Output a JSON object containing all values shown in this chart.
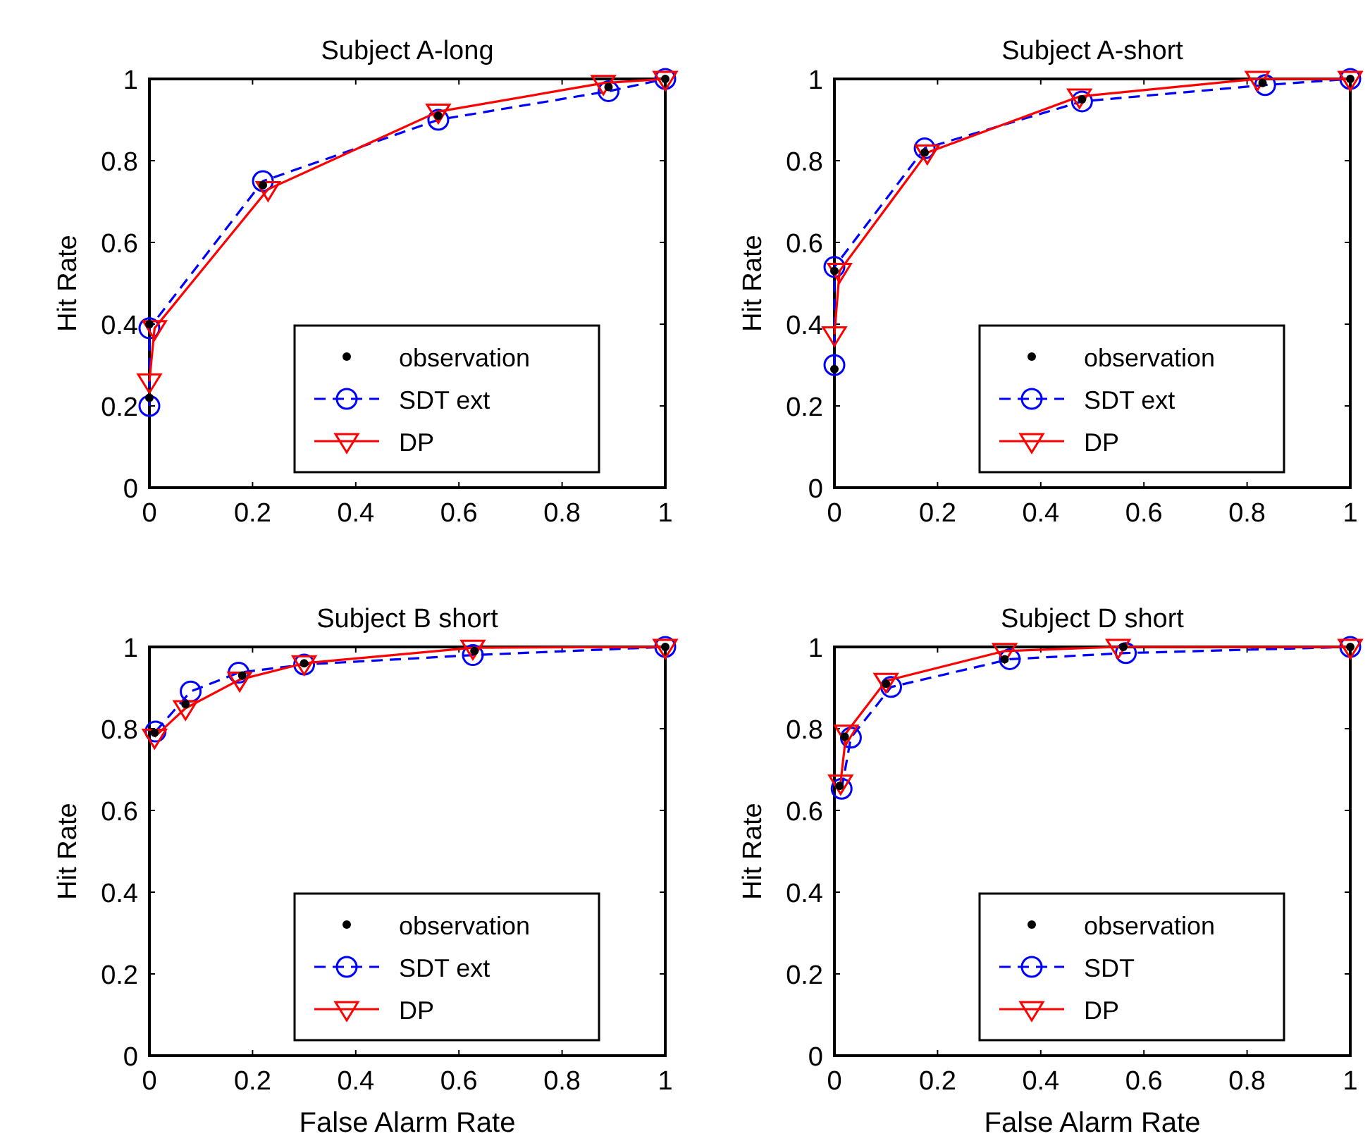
{
  "chart_data": [
    {
      "type": "line",
      "title": "Subject A-long",
      "ylabel": "Hit Rate",
      "xlim": [
        0,
        1
      ],
      "ylim": [
        0,
        1
      ],
      "xticks": [
        0,
        0.2,
        0.4,
        0.6,
        0.8,
        1
      ],
      "yticks": [
        0,
        0.2,
        0.4,
        0.6,
        0.8,
        1
      ],
      "legend": "bottom",
      "grid": false,
      "series": [
        {
          "name": "observation",
          "type": "scatter",
          "color": "#000000",
          "marker": "circle",
          "x": [
            0,
            0,
            0.22,
            0.56,
            0.89,
            1
          ],
          "values": [
            0.22,
            0.4,
            0.74,
            0.91,
            0.98,
            1
          ]
        },
        {
          "name": "SDT ext",
          "type": "line",
          "color": "#0000ff",
          "marker": "circle",
          "line_style": "dashed",
          "x": [
            0,
            0,
            0.22,
            0.56,
            0.89,
            1
          ],
          "values": [
            0.2,
            0.39,
            0.75,
            0.9,
            0.97,
            1
          ]
        },
        {
          "name": "DP",
          "type": "line",
          "color": "#ff0000",
          "marker": "triangle",
          "line_style": "solid",
          "x": [
            0,
            0.01,
            0.23,
            0.56,
            0.88,
            1
          ],
          "values": [
            0.26,
            0.39,
            0.73,
            0.92,
            0.99,
            1
          ]
        }
      ]
    },
    {
      "type": "line",
      "title": "Subject A-short",
      "ylabel": "Hit Rate",
      "xlim": [
        0,
        1
      ],
      "ylim": [
        0,
        1
      ],
      "xticks": [
        0,
        0.2,
        0.4,
        0.6,
        0.8,
        1
      ],
      "yticks": [
        0,
        0.2,
        0.4,
        0.6,
        0.8,
        1
      ],
      "legend": "bottom",
      "grid": false,
      "series": [
        {
          "name": "observation",
          "type": "scatter",
          "color": "#000000",
          "marker": "circle",
          "x": [
            0,
            0,
            0.175,
            0.48,
            0.83,
            1
          ],
          "values": [
            0.29,
            0.53,
            0.82,
            0.95,
            0.99,
            1
          ]
        },
        {
          "name": "SDT ext",
          "type": "line",
          "color": "#0000ff",
          "marker": "circle",
          "line_style": "dashed",
          "x": [
            0,
            0,
            0.175,
            0.48,
            0.835,
            1
          ],
          "values": [
            0.3,
            0.54,
            0.83,
            0.945,
            0.985,
            1
          ]
        },
        {
          "name": "DP",
          "type": "line",
          "color": "#ff0000",
          "marker": "triangle",
          "line_style": "solid",
          "x": [
            0,
            0.01,
            0.18,
            0.475,
            0.82,
            1
          ],
          "values": [
            0.375,
            0.53,
            0.82,
            0.957,
            1,
            1
          ]
        }
      ]
    },
    {
      "type": "line",
      "title": "Subject B short",
      "xlabel": "False Alarm Rate",
      "ylabel": "Hit Rate",
      "xlim": [
        0,
        1
      ],
      "ylim": [
        0,
        1
      ],
      "xticks": [
        0,
        0.2,
        0.4,
        0.6,
        0.8,
        1
      ],
      "yticks": [
        0,
        0.2,
        0.4,
        0.6,
        0.8,
        1
      ],
      "legend": "bottom",
      "grid": false,
      "series": [
        {
          "name": "observation",
          "type": "scatter",
          "color": "#000000",
          "marker": "circle",
          "x": [
            0.01,
            0.07,
            0.18,
            0.3,
            0.63,
            1
          ],
          "values": [
            0.79,
            0.86,
            0.93,
            0.96,
            0.99,
            1
          ]
        },
        {
          "name": "SDT ext",
          "type": "line",
          "color": "#0000ff",
          "marker": "circle",
          "line_style": "dashed",
          "x": [
            0.012,
            0.08,
            0.173,
            0.3,
            0.627,
            1
          ],
          "values": [
            0.793,
            0.891,
            0.937,
            0.957,
            0.98,
            1
          ]
        },
        {
          "name": "DP",
          "type": "line",
          "color": "#ff0000",
          "marker": "triangle",
          "line_style": "solid",
          "x": [
            0.01,
            0.07,
            0.175,
            0.3,
            0.627,
            1
          ],
          "values": [
            0.78,
            0.85,
            0.92,
            0.96,
            0.998,
            1
          ]
        }
      ]
    },
    {
      "type": "line",
      "title": "Subject D short",
      "xlabel": "False Alarm Rate",
      "ylabel": "Hit Rate",
      "xlim": [
        0,
        1
      ],
      "ylim": [
        0,
        1
      ],
      "xticks": [
        0,
        0.2,
        0.4,
        0.6,
        0.8,
        1
      ],
      "yticks": [
        0,
        0.2,
        0.4,
        0.6,
        0.8,
        1
      ],
      "legend": "bottom",
      "grid": false,
      "series": [
        {
          "name": "observation",
          "type": "scatter",
          "color": "#000000",
          "marker": "circle",
          "x": [
            0.01,
            0.02,
            0.1,
            0.33,
            0.56,
            1
          ],
          "values": [
            0.66,
            0.78,
            0.91,
            0.97,
            1,
            1
          ]
        },
        {
          "name": "SDT",
          "type": "line",
          "color": "#0000ff",
          "marker": "circle",
          "line_style": "dashed",
          "x": [
            0.014,
            0.032,
            0.11,
            0.34,
            0.565,
            1
          ],
          "values": [
            0.653,
            0.778,
            0.902,
            0.97,
            0.985,
            1
          ]
        },
        {
          "name": "DP",
          "type": "line",
          "color": "#ff0000",
          "marker": "triangle",
          "line_style": "solid",
          "x": [
            0.012,
            0.023,
            0.1,
            0.33,
            0.55,
            1
          ],
          "values": [
            0.668,
            0.79,
            0.917,
            0.99,
            1,
            1
          ]
        }
      ]
    }
  ]
}
